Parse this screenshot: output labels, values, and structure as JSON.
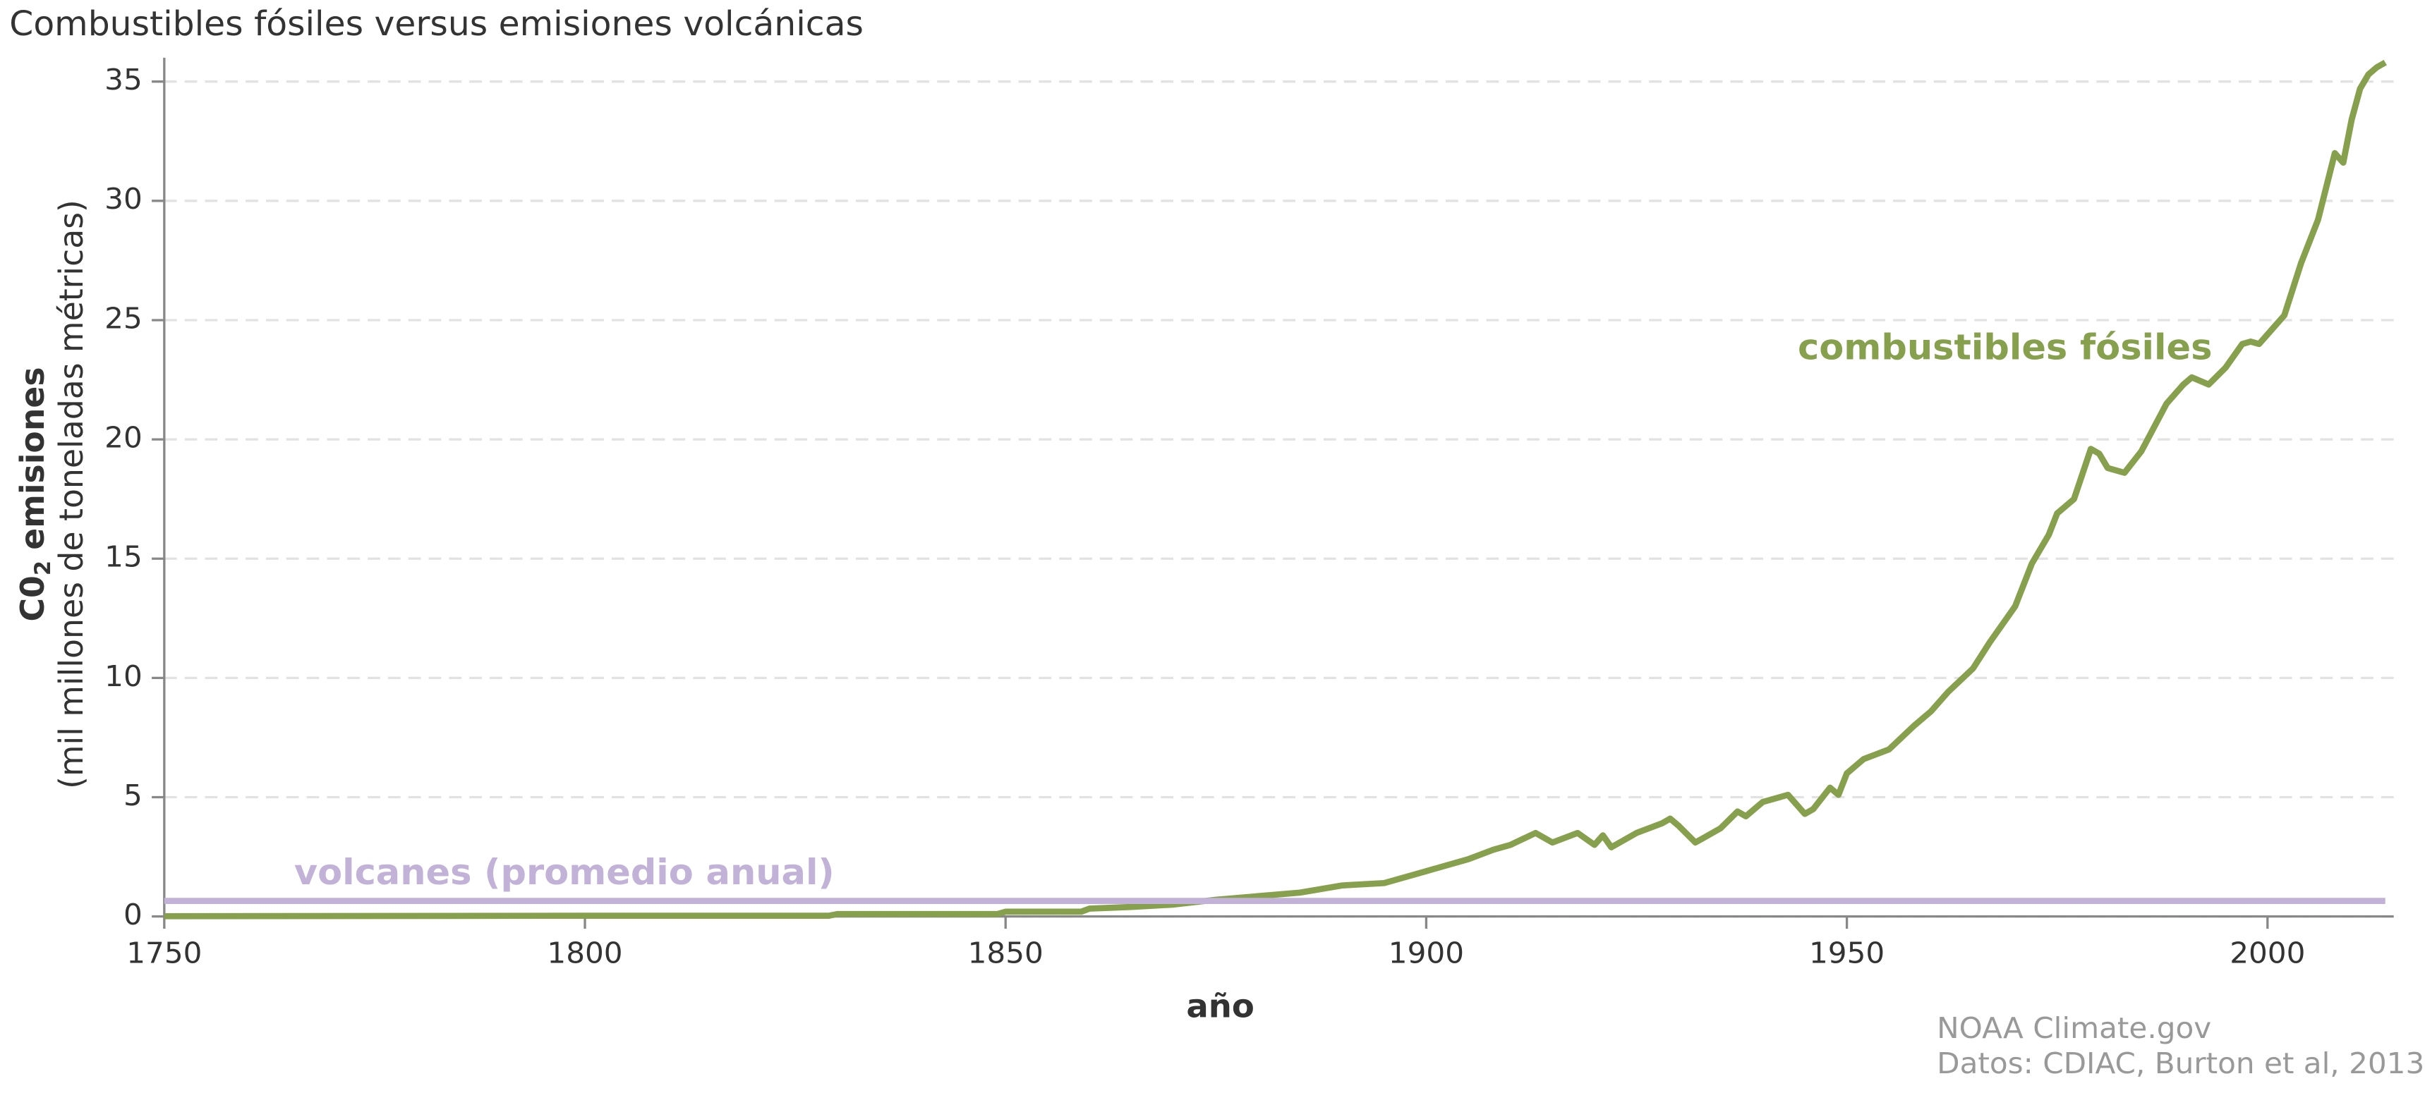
{
  "chart_data": {
    "type": "line",
    "title": "Combustibles fósiles versus emisiones volcánicas",
    "xlabel": "año",
    "ylabel": {
      "main": "C0",
      "sub": "2",
      "rest": "emisiones"
    },
    "ylabel2": "(mil millones de toneladas métricas)",
    "credits": [
      "NOAA Climate.gov",
      "Datos: CDIAC, Burton et al, 2013"
    ],
    "xlim": [
      1750,
      2015
    ],
    "xticks": [
      1750,
      1800,
      1850,
      1900,
      1950,
      2000
    ],
    "ylim": [
      0,
      36
    ],
    "yticks": [
      0,
      5,
      10,
      15,
      20,
      25,
      30,
      35
    ],
    "grid": true,
    "series": [
      {
        "name": "combustibles fósiles",
        "color": "#86a04e",
        "x": [
          1750,
          1800,
          1829,
          1830,
          1849,
          1850,
          1859,
          1860,
          1865,
          1870,
          1875,
          1880,
          1885,
          1890,
          1895,
          1900,
          1905,
          1908,
          1910,
          1913,
          1915,
          1918,
          1920,
          1921,
          1922,
          1925,
          1928,
          1929,
          1930,
          1932,
          1935,
          1937,
          1938,
          1940,
          1942,
          1943,
          1945,
          1946,
          1948,
          1949,
          1950,
          1952,
          1955,
          1958,
          1960,
          1962,
          1965,
          1967,
          1970,
          1972,
          1974,
          1975,
          1977,
          1979,
          1980,
          1981,
          1983,
          1985,
          1988,
          1990,
          1991,
          1993,
          1995,
          1997,
          1998,
          1999,
          2000,
          2002,
          2004,
          2006,
          2008,
          2009,
          2010,
          2011,
          2012,
          2013,
          2014
        ],
        "values": [
          0.01,
          0.03,
          0.03,
          0.1,
          0.1,
          0.2,
          0.2,
          0.33,
          0.4,
          0.5,
          0.7,
          0.85,
          1.0,
          1.3,
          1.4,
          1.9,
          2.4,
          2.8,
          3.0,
          3.5,
          3.1,
          3.5,
          3.0,
          3.4,
          2.9,
          3.5,
          3.9,
          4.1,
          3.8,
          3.1,
          3.7,
          4.4,
          4.2,
          4.8,
          5.0,
          5.1,
          4.3,
          4.5,
          5.4,
          5.1,
          6.0,
          6.6,
          7.0,
          8.0,
          8.6,
          9.4,
          10.4,
          11.5,
          13.0,
          14.8,
          16.0,
          16.9,
          17.5,
          19.6,
          19.4,
          18.8,
          18.6,
          19.5,
          21.5,
          22.3,
          22.6,
          22.3,
          23.0,
          24.0,
          24.1,
          24.0,
          24.4,
          25.2,
          27.4,
          29.2,
          32.0,
          31.6,
          33.4,
          34.7,
          35.3,
          35.6,
          35.8
        ]
      },
      {
        "name": "volcanes (promedio anual)",
        "color": "#c2b2d8",
        "x": [
          1750,
          2014
        ],
        "values": [
          0.65,
          0.65
        ]
      }
    ]
  }
}
